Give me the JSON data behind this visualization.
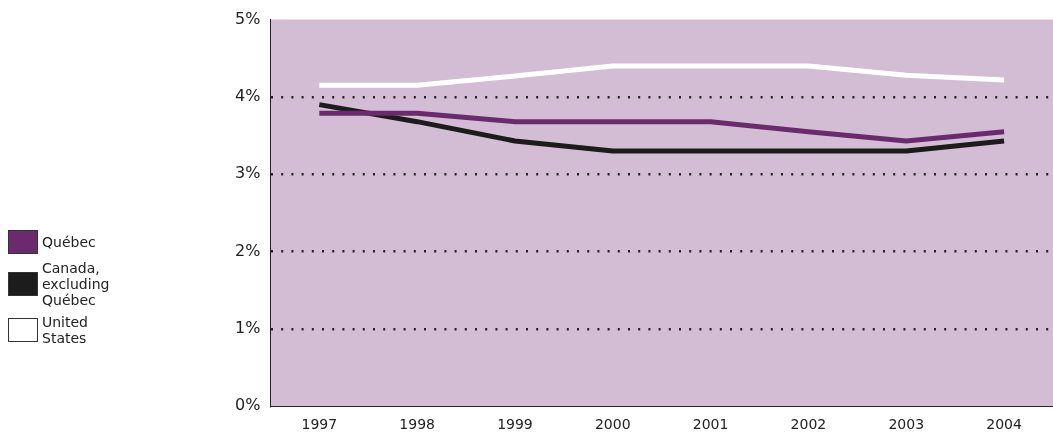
{
  "chart_data": {
    "type": "line",
    "categories": [
      "1997",
      "1998",
      "1999",
      "2000",
      "2001",
      "2002",
      "2003",
      "2004"
    ],
    "series": [
      {
        "name": "Québec",
        "color": "#6b2a6e",
        "values": [
          3.79,
          3.79,
          3.68,
          3.68,
          3.68,
          3.55,
          3.43,
          3.55
        ]
      },
      {
        "name": "Canada, excluding Québec",
        "color": "#1c1c1c",
        "values": [
          3.9,
          3.68,
          3.43,
          3.3,
          3.3,
          3.3,
          3.3,
          3.43
        ]
      },
      {
        "name": "United States",
        "color": "#ffffff",
        "values": [
          4.15,
          4.15,
          4.27,
          4.4,
          4.4,
          4.4,
          4.28,
          4.22
        ]
      }
    ],
    "ylim": [
      0,
      5
    ],
    "yticks": [
      {
        "value": 0,
        "label": "0%"
      },
      {
        "value": 1,
        "label": "1%"
      },
      {
        "value": 2,
        "label": "2%"
      },
      {
        "value": 3,
        "label": "3%"
      },
      {
        "value": 4,
        "label": "4%"
      },
      {
        "value": 5,
        "label": "5%"
      }
    ],
    "grid": "y",
    "line_style": "solid",
    "marker": "none",
    "legend": "left"
  }
}
